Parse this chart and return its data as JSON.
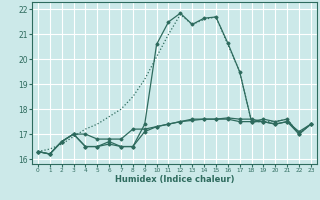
{
  "title": "",
  "xlabel": "Humidex (Indice chaleur)",
  "ylabel": "",
  "xlim": [
    -0.5,
    23.5
  ],
  "ylim": [
    15.8,
    22.3
  ],
  "yticks": [
    16,
    17,
    18,
    19,
    20,
    21,
    22
  ],
  "xticks": [
    0,
    1,
    2,
    3,
    4,
    5,
    6,
    7,
    8,
    9,
    10,
    11,
    12,
    13,
    14,
    15,
    16,
    17,
    18,
    19,
    20,
    21,
    22,
    23
  ],
  "bg_color": "#cce9e9",
  "grid_color": "#ffffff",
  "line_color": "#2e6b5e",
  "lines": [
    {
      "x": [
        0,
        1,
        2,
        3,
        4,
        5,
        6,
        7,
        8,
        9,
        10,
        11,
        12,
        13,
        14,
        15,
        16,
        17,
        18,
        19,
        20,
        21,
        22,
        23
      ],
      "y": [
        16.3,
        16.2,
        16.7,
        17.0,
        17.0,
        16.8,
        16.8,
        16.8,
        17.2,
        17.2,
        17.3,
        17.4,
        17.5,
        17.6,
        17.6,
        17.6,
        17.6,
        17.5,
        17.5,
        17.5,
        17.4,
        17.5,
        17.0,
        17.4
      ],
      "style": "solid",
      "marker": true
    },
    {
      "x": [
        0,
        1,
        2,
        3,
        4,
        5,
        6,
        7,
        8,
        9,
        10,
        11,
        12,
        13,
        14,
        15,
        16,
        17,
        18,
        19,
        20,
        21,
        22,
        23
      ],
      "y": [
        16.3,
        16.2,
        16.7,
        17.0,
        16.5,
        16.5,
        16.6,
        16.5,
        16.5,
        17.1,
        17.3,
        17.4,
        17.5,
        17.55,
        17.6,
        17.6,
        17.65,
        17.6,
        17.6,
        17.5,
        17.4,
        17.5,
        17.1,
        17.4
      ],
      "style": "solid",
      "marker": true
    },
    {
      "x": [
        0,
        1,
        2,
        3,
        4,
        5,
        6,
        7,
        8,
        9,
        10,
        11,
        12,
        13,
        14,
        15,
        16,
        17,
        18,
        19,
        20,
        21,
        22,
        23
      ],
      "y": [
        16.3,
        16.4,
        16.6,
        16.9,
        17.2,
        17.4,
        17.7,
        18.0,
        18.5,
        19.2,
        20.1,
        21.0,
        21.8,
        21.4,
        21.6,
        21.7,
        20.6,
        19.5,
        17.5,
        17.5,
        17.5,
        17.6,
        17.0,
        17.4
      ],
      "style": "dotted",
      "marker": false
    },
    {
      "x": [
        0,
        1,
        2,
        3,
        4,
        5,
        6,
        7,
        8,
        9,
        10,
        11,
        12,
        13,
        14,
        15,
        16,
        17,
        18,
        19,
        20,
        21,
        22,
        23
      ],
      "y": [
        16.3,
        16.2,
        16.7,
        17.0,
        16.5,
        16.5,
        16.7,
        16.5,
        16.5,
        17.4,
        20.6,
        21.5,
        21.85,
        21.4,
        21.65,
        21.7,
        20.65,
        19.5,
        17.5,
        17.6,
        17.5,
        17.6,
        17.0,
        17.4
      ],
      "style": "solid",
      "marker": true
    }
  ]
}
